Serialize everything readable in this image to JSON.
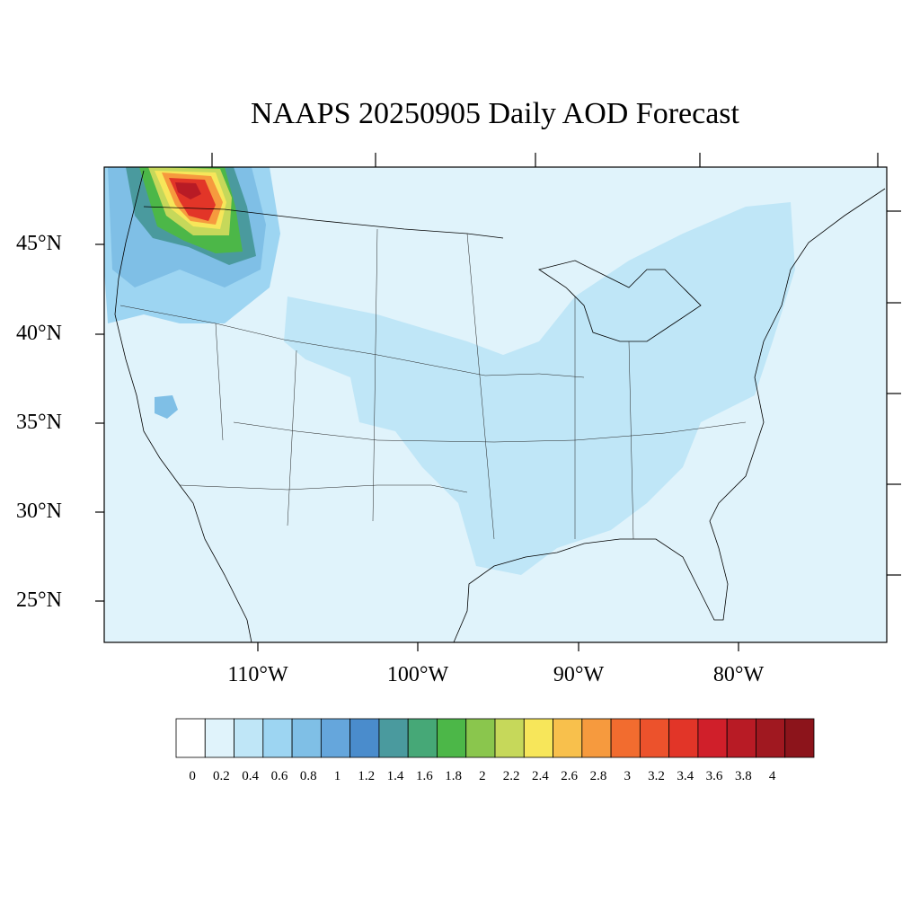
{
  "title": "NAAPS 20250905 Daily AOD Forecast",
  "lat_labels": [
    "45°N",
    "40°N",
    "35°N",
    "30°N",
    "25°N"
  ],
  "lon_labels": [
    "110°W",
    "100°W",
    "90°W",
    "80°W"
  ],
  "colorbar": {
    "labels": [
      "0",
      "0.2",
      "0.4",
      "0.6",
      "0.8",
      "1",
      "1.2",
      "1.4",
      "1.6",
      "1.8",
      "2",
      "2.2",
      "2.4",
      "2.6",
      "2.8",
      "3",
      "3.2",
      "3.4",
      "3.6",
      "3.8",
      "4"
    ],
    "colors": [
      "#ffffff",
      "#e0f3fb",
      "#bfe6f7",
      "#9dd5f2",
      "#7fbfe6",
      "#65a6dc",
      "#4a8ccc",
      "#4a9a9e",
      "#46a877",
      "#4cb748",
      "#8ac64d",
      "#c6d85a",
      "#f7e65a",
      "#f8c04c",
      "#f69a3e",
      "#f26c2f",
      "#ec522c",
      "#e23528",
      "#d01f2a",
      "#b81b25",
      "#a01820",
      "#8c141b"
    ]
  },
  "colors": {
    "background_ocean": "#e0f3fb",
    "aod_low": "#bfe6f7",
    "aod_plume": "#7fbfe6"
  }
}
